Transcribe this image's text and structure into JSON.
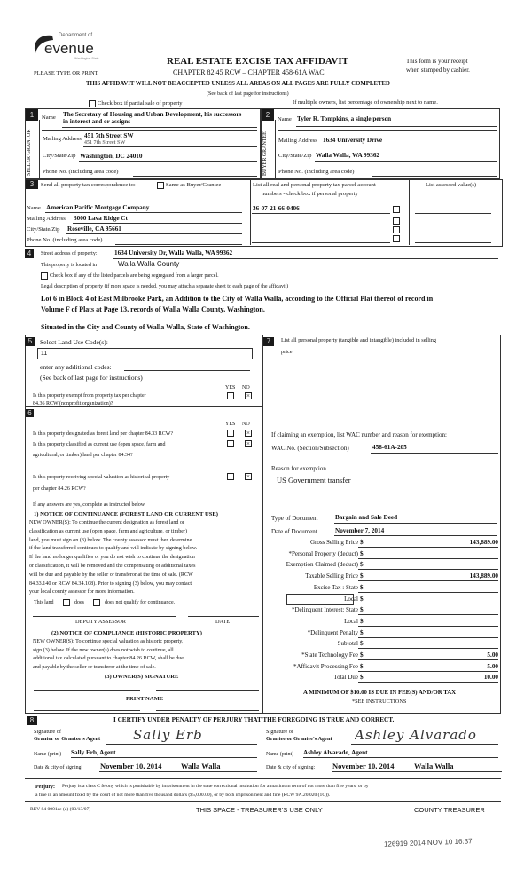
{
  "header": {
    "logo_top": "Department of",
    "logo_main": "evenue",
    "logo_sub": "Washington State",
    "please": "PLEASE TYPE OR PRINT",
    "title": "REAL ESTATE EXCISE TAX AFFIDAVIT",
    "chapter": "CHAPTER 82.45 RCW – CHAPTER 458-61A WAC",
    "receipt1": "This form is your receipt",
    "receipt2": "when stamped by cashier.",
    "warning": "THIS AFFIDAVIT WILL NOT BE ACCEPTED UNLESS ALL AREAS ON ALL PAGES ARE FULLY COMPLETED",
    "see_back": "(See back of last page for instructions)",
    "partial_sale": "Check box if partial sale of property",
    "multiple_owners": "If multiple owners, list percentage of ownership next to name."
  },
  "section1": {
    "num": "1",
    "side": "SELLER GRANTOR",
    "name_label": "Name",
    "name1": "The Secretary of Housing and Urban Development, his successors",
    "name2": "in interest and or assigns",
    "mail_label": "Mailing Address",
    "mail": "451  7th Street SW",
    "mail_dup": "451 7th Street SW",
    "city_label": "City/State/Zip",
    "city": "Washington, DC  24010",
    "phone_label": "Phone No. (including area code)"
  },
  "section2": {
    "num": "2",
    "side": "BUYER GRANTEE",
    "name_label": "Name",
    "name": "Tyler R. Tompkins, a single person",
    "mail_label": "Mailing Address",
    "mail": "1634 University Drive",
    "city_label": "City/State/Zip",
    "city": "Walla Walla, WA  99362",
    "phone_label": "Phone No. (including area code)"
  },
  "section3": {
    "num": "3",
    "send": "Send all property tax correspondence to:",
    "same": "Same as Buyer/Grantee",
    "list1": "List all real and personal property tax parcel account",
    "list2": "numbers - check box if personal property",
    "assessed": "List assessed value(s)",
    "name_label": "Name",
    "name": "American Pacific Mortgage Company",
    "mail_label": "Mailing Address",
    "mail": "3000 Lava Ridge Ct",
    "city_label": "City/State/Zip",
    "city": "Roseville, CA  95661",
    "phone_label": "Phone No. (including area code)",
    "parcels": [
      "36-07-21-66-0406",
      "",
      "",
      ""
    ]
  },
  "section4": {
    "num": "4",
    "street_label": "Street address of property:",
    "street": "1634 University Dr, Walla Walla, WA  99362",
    "located_label": "This property is located in",
    "county": "Walla Walla County",
    "segregated": "Check box if any of the listed parcels are being segregated from a larger parcel.",
    "legal_label": "Legal description of property (if more space is needed, you may attach a separate sheet to each page of the affidavit)",
    "legal1": "Lot 6 in Block 4 of East Milbrooke Park, an Addition to the City of Walla Walla, according to the Official Plat thereof of record in",
    "legal2": "Volume F of Plats at Page 13, records of Walla Walla County, Washington.",
    "legal3": "Situated in the City and County of Walla Walla, State of Washington."
  },
  "section5": {
    "num": "5",
    "label": "Select Land Use Code(s):",
    "code": "11",
    "additional": "enter any additional codes:",
    "see_back": "(See back of last page for instructions)",
    "yes": "YES",
    "no": "NO",
    "exempt1": "Is this property exempt from property tax per chapter",
    "exempt2": "84.36 RCW (nonprofit organization)?",
    "exempt_answer": "NO"
  },
  "section6": {
    "num": "6",
    "yes": "YES",
    "no": "NO",
    "q1": "Is this property designated as forest land per chapter 84.33 RCW?",
    "q2a": "Is this property classified as current use (open space, farm and",
    "q2b": "agricultural, or timber) land per chapter 84.34?",
    "q3a": "Is this property receiving special valuation as historical property",
    "q3b": "per chapter 84.26 RCW?",
    "answers": [
      "NO",
      "NO",
      "NO"
    ],
    "if_yes": "If any answers are yes, complete as instructed below.",
    "n1_title": "1) NOTICE OF CONTINUANCE (FOREST LAND OR CURRENT USE)",
    "n1_lines": [
      "NEW OWNER(S): To continue the current designation as forest land or",
      "classification as current use (open space, farm and agriculture, or timber)",
      "land, you must sign on (3) below. The county assessor must then determine",
      "if the land transferred continues to qualify and will indicate by signing below.",
      "If the land no longer qualifies or you do not wish to continue the designation",
      "or classification, it will be removed and the compensating or additional taxes",
      "will be due and payable by the seller or transferor at the time of sale. (RCW",
      "84.33.140 or RCW 84.34.108). Prior to signing (3) below, you may contact",
      "your local county assessor for more information."
    ],
    "this_land": "This land",
    "does": "does",
    "does_not": "does not qualify for continuance.",
    "deputy": "DEPUTY ASSESSOR",
    "date": "DATE",
    "n2_title": "(2) NOTICE OF COMPLIANCE (HISTORIC PROPERTY)",
    "n2_lines": [
      "NEW OWNER(S): To continue special valuation as historic property,",
      "sign (3) below. If the new owner(s) does not wish to continue, all",
      "additional tax calculated pursuant to chapter 84.26 RCW, shall be due",
      "and payable by the seller or transferor at the time of sale."
    ],
    "n3_title": "(3) OWNER(S) SIGNATURE",
    "print_name": "PRINT NAME"
  },
  "section7": {
    "num": "7",
    "label1": "List all personal property (tangible and intangible) included in selling",
    "label2": "price.",
    "claim": "If claiming an exemption, list WAC number and reason for exemption:",
    "wac_label": "WAC No. (Section/Subsection)",
    "wac": "458-61A-205",
    "reason_label": "Reason for exemption",
    "reason": "US Government transfer",
    "doc_type_label": "Type of Document",
    "doc_type": "Bargain and Sale Deed",
    "doc_date_label": "Date of Document",
    "doc_date": "November 7, 2014",
    "currency": "$",
    "amounts": [
      {
        "label": "Gross Selling Price",
        "value": "143,889.00"
      },
      {
        "label": "*Personal Property (deduct)",
        "value": ""
      },
      {
        "label": "Exemption Claimed (deduct)",
        "value": ""
      },
      {
        "label": "Taxable Selling Price",
        "value": "143,889.00"
      },
      {
        "label": "Excise Tax : State",
        "value": ""
      },
      {
        "label": "Local",
        "value": ""
      },
      {
        "label": "*Delinquent Interest:  State",
        "value": ""
      },
      {
        "label": "Local",
        "value": ""
      },
      {
        "label": "*Delinquent Penalty",
        "value": ""
      },
      {
        "label": "Subtotal",
        "value": ""
      },
      {
        "label": "*State Technology Fee",
        "value": "5.00"
      },
      {
        "label": "*Affidavit Processing Fee",
        "value": "5.00"
      },
      {
        "label": "Total Due",
        "value": "10.00"
      }
    ],
    "minimum": "A MINIMUM OF $10.00 IS DUE IN FEE(S) AND/OR TAX",
    "see_instr": "*SEE INSTRUCTIONS"
  },
  "section8": {
    "num": "8",
    "certify": "I CERTIFY UNDER PENALTY OF PERJURY THAT THE FOREGOING IS TRUE AND CORRECT.",
    "sig_of": "Signature of",
    "grantor_agent": "Grantor or Grantor's Agent",
    "grantee_agent": "Grantee or Grantee's Agent",
    "grantor_signature": "Sally Erb",
    "grantee_signature": "Ashley Alvarado",
    "name_label": "Name (print)",
    "grantor_name": "Sally Erb, Agent",
    "grantee_name": "Ashley Alvarado, Agent",
    "date_label": "Date & city of signing:",
    "grantor_date": "November 10, 2014",
    "grantor_city": "Walla Walla",
    "grantee_date": "November 10, 2014",
    "grantee_city": "Walla Walla"
  },
  "footer": {
    "perjury_label": "Perjury:",
    "perjury1": "Perjury is a class C felony which is punishable by imprisonment in the state correctional institution for a maximum term of not more than five years, or by",
    "perjury2": "a fine in an amount fixed by the court of not more than five thousand dollars ($5,000.00), or by both imprisonment and fine (RCW 9A.20.020 (1C)).",
    "rev": "REV 84 0001ae (a) (03/13/07)",
    "treasurer_use": "THIS SPACE - TREASURER'S USE ONLY",
    "county_treasurer": "COUNTY TREASURER",
    "stamp": "126919 2014 NOV 10 16:37"
  }
}
